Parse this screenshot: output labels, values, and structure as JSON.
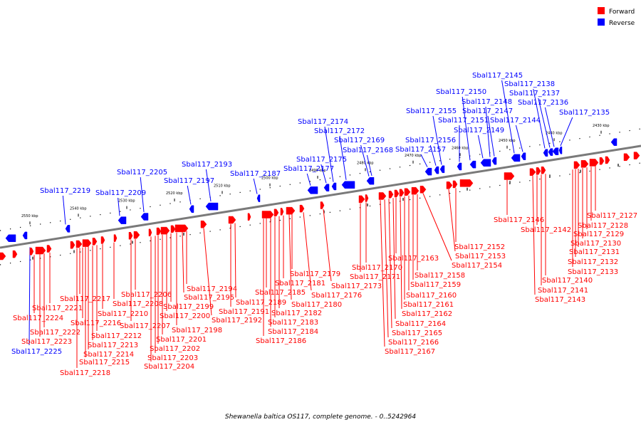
{
  "legend": {
    "forward": {
      "label": "Forward",
      "color": "#ff0000"
    },
    "reverse": {
      "label": "Reverse",
      "color": "#0000ff"
    }
  },
  "caption": "Shewanella baltica OS117, complete genome. - 0..5242964",
  "ticks": [
    "2550 kbp",
    "2540 kbp",
    "2530 kbp",
    "2520 kbp",
    "2510 kbp",
    "2500 kbp",
    "2490 kbp",
    "2480 kbp",
    "2470 kbp",
    "2460 kbp",
    "2450 kbp",
    "2440 kbp",
    "2430 kbp"
  ],
  "reverse_genes": [
    "Sbal117_2225",
    "Sbal117_2219",
    "Sbal117_2209",
    "Sbal117_2205",
    "Sbal117_2197",
    "Sbal117_2193",
    "Sbal117_2187",
    "Sbal117_2177",
    "Sbal117_2175",
    "Sbal117_2174",
    "Sbal117_2172",
    "Sbal117_2169",
    "Sbal117_2168",
    "Sbal117_2157",
    "Sbal117_2156",
    "Sbal117_2155",
    "Sbal117_2151",
    "Sbal117_2150",
    "Sbal117_2149",
    "Sbal117_2148",
    "Sbal117_2147",
    "Sbal117_2145",
    "Sbal117_2144",
    "Sbal117_2138",
    "Sbal117_2137",
    "Sbal117_2136",
    "Sbal117_2135"
  ],
  "forward_genes": [
    "Sbal117_2224",
    "Sbal117_2223",
    "Sbal117_2222",
    "Sbal117_2221",
    "Sbal117_2218",
    "Sbal117_2217",
    "Sbal117_2216",
    "Sbal117_2215",
    "Sbal117_2214",
    "Sbal117_2213",
    "Sbal117_2212",
    "Sbal117_2210",
    "Sbal117_2208",
    "Sbal117_2207",
    "Sbal117_2206",
    "Sbal117_2204",
    "Sbal117_2203",
    "Sbal117_2202",
    "Sbal117_2201",
    "Sbal117_2200",
    "Sbal117_2199",
    "Sbal117_2198",
    "Sbal117_2195",
    "Sbal117_2194",
    "Sbal117_2192",
    "Sbal117_2191",
    "Sbal117_2189",
    "Sbal117_2186",
    "Sbal117_2185",
    "Sbal117_2184",
    "Sbal117_2183",
    "Sbal117_2182",
    "Sbal117_2181",
    "Sbal117_2180",
    "Sbal117_2179",
    "Sbal117_2176",
    "Sbal117_2173",
    "Sbal117_2171",
    "Sbal117_2170",
    "Sbal117_2167",
    "Sbal117_2166",
    "Sbal117_2165",
    "Sbal117_2164",
    "Sbal117_2163",
    "Sbal117_2162",
    "Sbal117_2161",
    "Sbal117_2160",
    "Sbal117_2159",
    "Sbal117_2158",
    "Sbal117_2154",
    "Sbal117_2153",
    "Sbal117_2152",
    "Sbal117_2146",
    "Sbal117_2143",
    "Sbal117_2142",
    "Sbal117_2141",
    "Sbal117_2140",
    "Sbal117_2133",
    "Sbal117_2132",
    "Sbal117_2131",
    "Sbal117_2130",
    "Sbal117_2129",
    "Sbal117_2128",
    "Sbal117_2127"
  ]
}
